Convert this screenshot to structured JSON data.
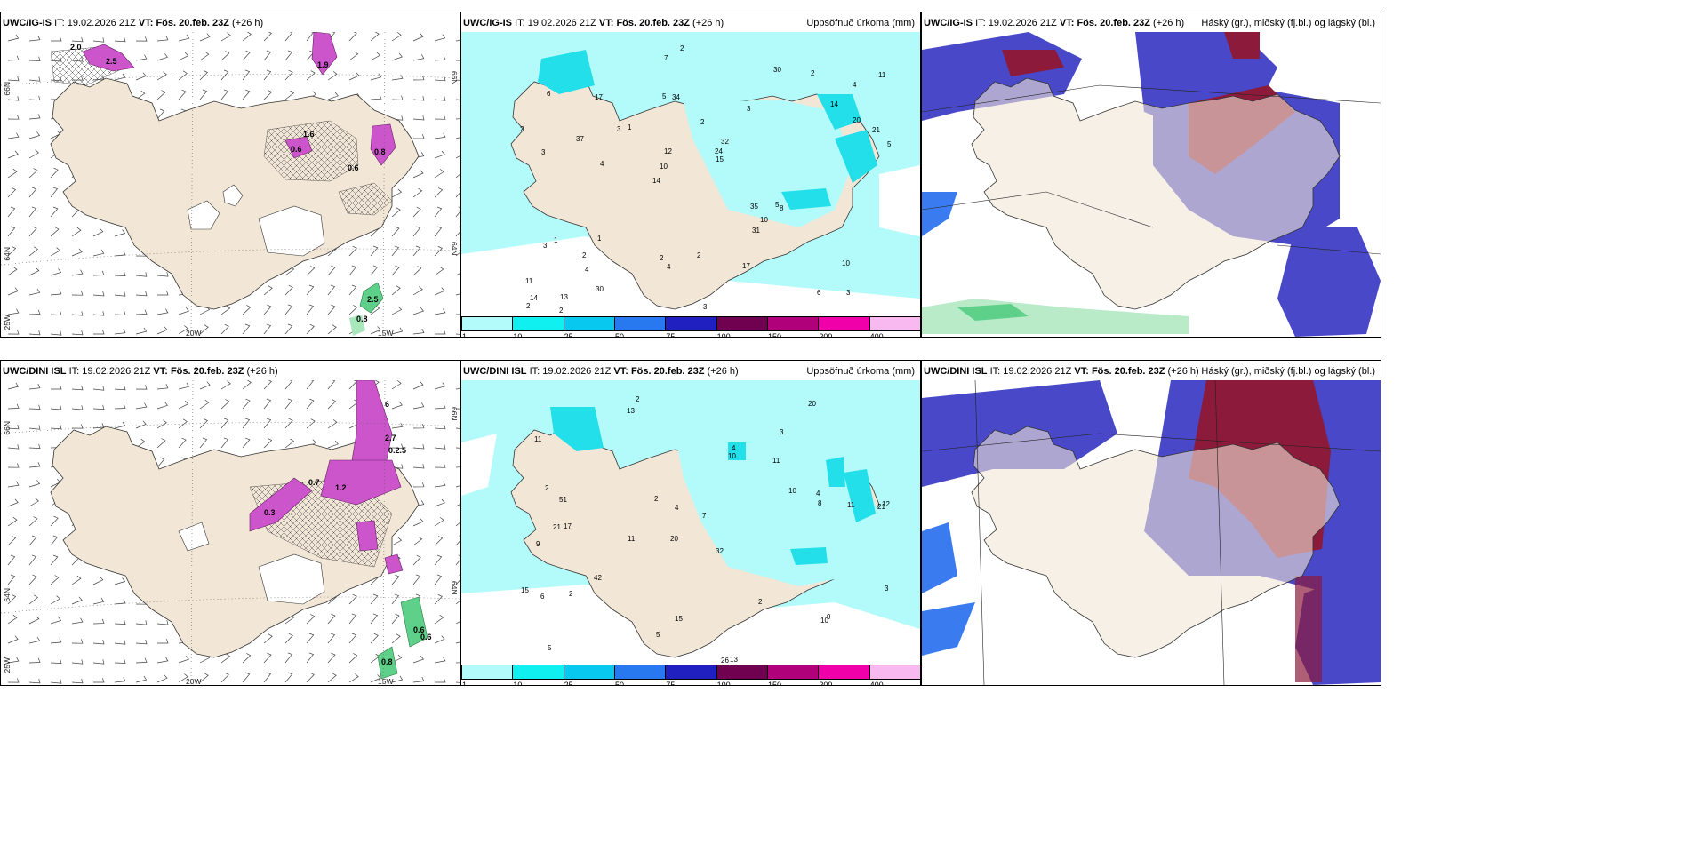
{
  "colors": {
    "land": "#f2e6d6",
    "sea": "#ffffff",
    "precip_light": "#b3fbfb",
    "precip_med": "#22dfea",
    "precip_heavy": "#0dbfe0",
    "snow_magenta": "#cc55cc",
    "green_precip": "#5fd089",
    "cloud_high": "#8b1a3b",
    "cloud_mid": "#4848c8",
    "cloud_low": "#3b7bf0"
  },
  "panels": [
    {
      "model": "UWC/IG-IS",
      "it_label": "IT:",
      "it_value": "19.02.2026 21Z",
      "vt_label": "VT:",
      "vt_value": "Fös. 20.feb. 23Z",
      "lead": "(+26 h)",
      "right_title": ""
    },
    {
      "model": "UWC/IG-IS",
      "it_label": "IT:",
      "it_value": "19.02.2026 21Z",
      "vt_label": "VT:",
      "vt_value": "Fös. 20.feb. 23Z",
      "lead": "(+26 h)",
      "right_title": "Uppsöfnuð úrkoma (mm)"
    },
    {
      "model": "UWC/IG-IS",
      "it_label": "IT:",
      "it_value": "19.02.2026 21Z",
      "vt_label": "VT:",
      "vt_value": "Fös. 20.feb. 23Z",
      "lead": "(+26 h)",
      "right_title": "Háský (gr.), miðský (fj.bl.) og lágský (bl.)"
    },
    {
      "model": "UWC/DINI ISL",
      "it_label": "IT:",
      "it_value": "19.02.2026 21Z",
      "vt_label": "VT:",
      "vt_value": "Fös. 20.feb. 23Z",
      "lead": "(+26 h)",
      "right_title": ""
    },
    {
      "model": "UWC/DINI ISL",
      "it_label": "IT:",
      "it_value": "19.02.2026 21Z",
      "vt_label": "VT:",
      "vt_value": "Fös. 20.feb. 23Z",
      "lead": "(+26 h)",
      "right_title": "Uppsöfnuð úrkoma (mm)"
    },
    {
      "model": "UWC/DINI ISL",
      "it_label": "IT:",
      "it_value": "19.02.2026 21Z",
      "vt_label": "VT:",
      "vt_value": "Fös. 20.feb. 23Z",
      "lead": "(+26 h)",
      "right_title": "Háský (gr.), miðský (fj.bl.) og lágský (bl.)"
    }
  ],
  "grid_labels": {
    "lat_66": "66N",
    "lat_64": "64N",
    "lon_25": "25W",
    "lon_20": "20W",
    "lon_15": "15W"
  },
  "colorbar": {
    "ticks": [
      "1",
      "10",
      "25",
      "50",
      "75",
      "100",
      "150",
      "200",
      "400"
    ],
    "colors": [
      "#b3fbfb",
      "#10f0f0",
      "#08c8f0",
      "#2878f0",
      "#2020c0",
      "#700050",
      "#b0007a",
      "#f000a8",
      "#f8b8f0"
    ]
  },
  "precip_values_top": [
    "3",
    "3",
    "4",
    "14",
    "3",
    "13",
    "5",
    "2",
    "1",
    "1",
    "11",
    "4",
    "34",
    "32",
    "8",
    "6",
    "7",
    "5",
    "35",
    "20",
    "10",
    "2",
    "12",
    "17",
    "30",
    "1",
    "6",
    "10",
    "5",
    "3",
    "3",
    "37",
    "31",
    "30",
    "21",
    "24",
    "14",
    "4",
    "15",
    "3",
    "14",
    "11",
    "10",
    "17",
    "2",
    "2",
    "2",
    "2",
    "2",
    "2",
    "4",
    "2"
  ],
  "precip_values_bottom": [
    "2",
    "3",
    "21",
    "20",
    "32",
    "17",
    "11",
    "11",
    "9",
    "10",
    "7",
    "5",
    "13",
    "11",
    "26",
    "13",
    "15",
    "20",
    "10",
    "42",
    "51",
    "21",
    "12",
    "11",
    "15",
    "2",
    "4",
    "8",
    "9",
    "6",
    "10",
    "4",
    "2",
    "2",
    "2",
    "3",
    "4",
    "5"
  ],
  "snow_values_top": [
    "2.0",
    "1.9",
    "2.5",
    "1.6",
    "0.6",
    "0.8",
    "0.6",
    "2.5",
    "0.8"
  ],
  "snow_values_bottom": [
    "6",
    "2.7",
    "0.2.5",
    "0.7",
    "1.2",
    "0.3",
    "0.6",
    "0.6",
    "0.8"
  ]
}
